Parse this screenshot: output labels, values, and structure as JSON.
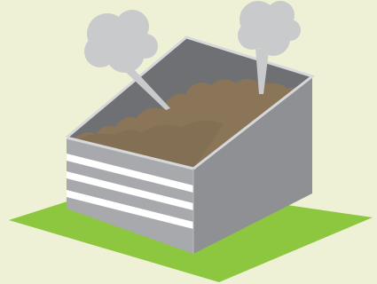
{
  "scene": {
    "subject": "compost-bin-icon",
    "colors": {
      "background": "#eff1d6",
      "ground": "#8dc63f",
      "bin_front": "#a8a9ad",
      "bin_side": "#8f9094",
      "bin_back_inner": "#6f7074",
      "bin_top_edge": "#d7d8da",
      "stripes": "#ffffff",
      "compost": "#8a7559",
      "compost_shadow": "#76634a",
      "steam": "#c9cacc"
    }
  }
}
